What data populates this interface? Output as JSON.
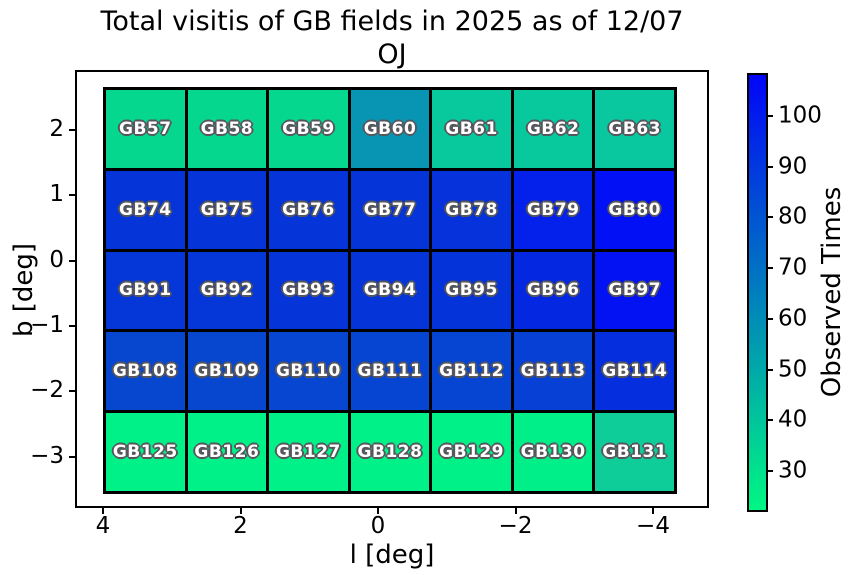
{
  "title": "Total visitis of GB fields in 2025 as of 12/07",
  "subtitle": "OJ",
  "axes": {
    "xlabel": "l [deg]",
    "ylabel": "b [deg]",
    "x_tick_labels": [
      "4",
      "2",
      "0",
      "−2",
      "−4"
    ],
    "y_tick_labels": [
      "2",
      "1",
      "0",
      "−1",
      "−2",
      "−3"
    ],
    "x_axis_inverted": true
  },
  "colorbar": {
    "label": "Observed Times",
    "tick_labels": [
      "100",
      "90",
      "80",
      "70",
      "60",
      "50",
      "40",
      "30"
    ],
    "top_color": "#0105f8",
    "bottom_color": "#00f783",
    "colormap": "winter_r"
  },
  "chart_data": {
    "type": "heatmap",
    "title": "Total visitis of GB fields in 2025 as of 12/07",
    "subtitle": "OJ",
    "xlabel": "l [deg]",
    "ylabel": "b [deg]",
    "colorbar_label": "Observed Times",
    "colormap": "winter_r",
    "color_range": [
      22,
      108
    ],
    "x_extent": [
      3.9,
      -4.35
    ],
    "y_extent": [
      2.66,
      -3.6
    ],
    "x_tick_values": [
      4,
      2,
      0,
      -2,
      -4
    ],
    "y_tick_values": [
      2,
      1,
      0,
      -1,
      -2,
      -3
    ],
    "colorbar_tick_values": [
      100,
      90,
      80,
      70,
      60,
      50,
      40,
      30
    ],
    "rows": [
      {
        "b_center": 2.0,
        "cells": [
          {
            "label": "GB57",
            "observed_times": 35,
            "color": "#06d78f"
          },
          {
            "label": "GB58",
            "observed_times": 35,
            "color": "#06d78f"
          },
          {
            "label": "GB59",
            "observed_times": 35,
            "color": "#06d78f"
          },
          {
            "label": "GB60",
            "observed_times": 59,
            "color": "#0895b3"
          },
          {
            "label": "GB61",
            "observed_times": 40,
            "color": "#08c89d"
          },
          {
            "label": "GB62",
            "observed_times": 40,
            "color": "#08c89d"
          },
          {
            "label": "GB63",
            "observed_times": 41,
            "color": "#09c79e"
          }
        ]
      },
      {
        "b_center": 0.75,
        "cells": [
          {
            "label": "GB74",
            "observed_times": 93,
            "color": "#0534d9"
          },
          {
            "label": "GB75",
            "observed_times": 93,
            "color": "#0534d9"
          },
          {
            "label": "GB76",
            "observed_times": 93,
            "color": "#0534d9"
          },
          {
            "label": "GB77",
            "observed_times": 93,
            "color": "#0534d9"
          },
          {
            "label": "GB78",
            "observed_times": 94,
            "color": "#0532db"
          },
          {
            "label": "GB79",
            "observed_times": 98,
            "color": "#0321ea"
          },
          {
            "label": "GB80",
            "observed_times": 104,
            "color": "#0210f5"
          }
        ]
      },
      {
        "b_center": -0.5,
        "cells": [
          {
            "label": "GB91",
            "observed_times": 92,
            "color": "#0536d8"
          },
          {
            "label": "GB92",
            "observed_times": 92,
            "color": "#0536d8"
          },
          {
            "label": "GB93",
            "observed_times": 93,
            "color": "#0535d9"
          },
          {
            "label": "GB94",
            "observed_times": 93,
            "color": "#0535d9"
          },
          {
            "label": "GB95",
            "observed_times": 93,
            "color": "#0533da"
          },
          {
            "label": "GB96",
            "observed_times": 96,
            "color": "#0427e2"
          },
          {
            "label": "GB97",
            "observed_times": 103,
            "color": "#0212f3"
          }
        ]
      },
      {
        "b_center": -1.75,
        "cells": [
          {
            "label": "GB108",
            "observed_times": 85,
            "color": "#0747d0"
          },
          {
            "label": "GB109",
            "observed_times": 85,
            "color": "#0747d0"
          },
          {
            "label": "GB110",
            "observed_times": 85,
            "color": "#0746d1"
          },
          {
            "label": "GB111",
            "observed_times": 86,
            "color": "#0645d2"
          },
          {
            "label": "GB112",
            "observed_times": 86,
            "color": "#0645d2"
          },
          {
            "label": "GB113",
            "observed_times": 87,
            "color": "#0640d4"
          },
          {
            "label": "GB114",
            "observed_times": 94,
            "color": "#052ede"
          }
        ]
      },
      {
        "b_center": -3.0,
        "cells": [
          {
            "label": "GB125",
            "observed_times": 26,
            "color": "#00f187"
          },
          {
            "label": "GB126",
            "observed_times": 26,
            "color": "#00f187"
          },
          {
            "label": "GB127",
            "observed_times": 26,
            "color": "#00f187"
          },
          {
            "label": "GB128",
            "observed_times": 26,
            "color": "#00f187"
          },
          {
            "label": "GB129",
            "observed_times": 26,
            "color": "#00f187"
          },
          {
            "label": "GB130",
            "observed_times": 27,
            "color": "#00ef88"
          },
          {
            "label": "GB131",
            "observed_times": 38,
            "color": "#0ecd98"
          }
        ]
      }
    ]
  }
}
